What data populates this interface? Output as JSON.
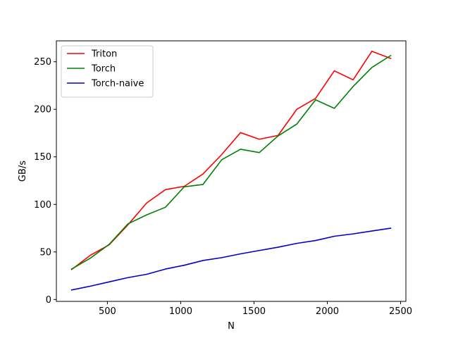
{
  "chart_data": {
    "type": "line",
    "xlabel": "N",
    "ylabel": "GB/s",
    "xlim": [
      152,
      2536
    ],
    "ylim": [
      -2,
      272
    ],
    "xticks": [
      500,
      1000,
      1500,
      2000,
      2500
    ],
    "yticks": [
      0,
      50,
      100,
      150,
      200,
      250
    ],
    "grid": false,
    "legend_position": "upper-left",
    "x": [
      256,
      384,
      512,
      640,
      768,
      896,
      1024,
      1152,
      1280,
      1408,
      1536,
      1664,
      1792,
      1920,
      2048,
      2176,
      2304,
      2432
    ],
    "series": [
      {
        "name": "Triton",
        "color": "#ff0000",
        "values": [
          31.5,
          46.5,
          57.5,
          78.5,
          101.5,
          115.5,
          119.0,
          132.0,
          152.5,
          175.5,
          168.5,
          172.5,
          200.0,
          211.5,
          240.5,
          231.0,
          261.0,
          253.5
        ]
      },
      {
        "name": "Torch",
        "color": "#008000",
        "values": [
          32.0,
          43.5,
          58.0,
          79.5,
          89.0,
          97.0,
          118.5,
          121.0,
          147.0,
          158.0,
          154.5,
          172.0,
          184.5,
          210.0,
          201.0,
          224.0,
          244.0,
          256.5
        ]
      },
      {
        "name": "Torch-naive",
        "color": "#0000cc",
        "values": [
          10.0,
          14.0,
          18.5,
          23.0,
          26.5,
          32.0,
          36.0,
          41.0,
          44.0,
          48.0,
          51.5,
          55.0,
          59.0,
          62.0,
          66.5,
          69.0,
          72.0,
          75.0
        ]
      }
    ]
  }
}
